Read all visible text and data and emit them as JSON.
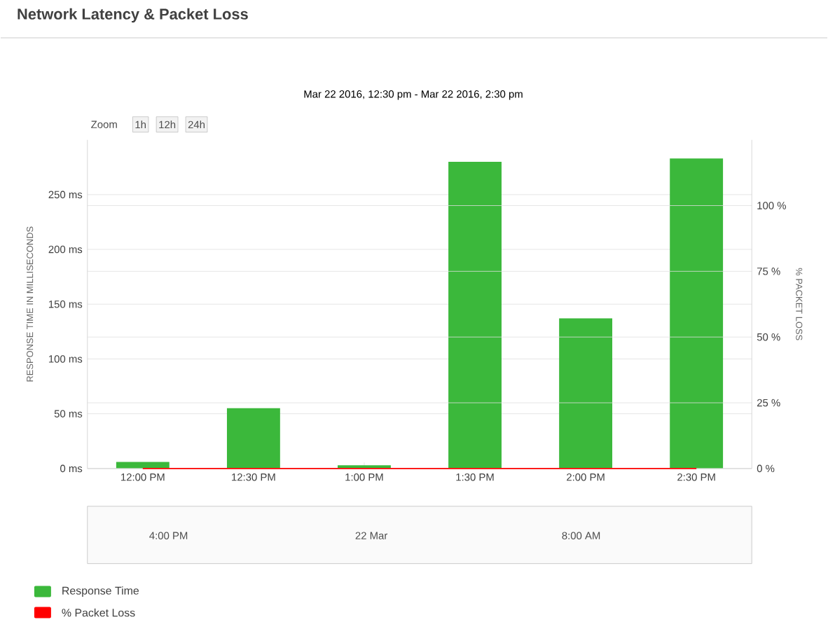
{
  "chart_data": {
    "type": "bar",
    "title": "Network Latency & Packet Loss",
    "subtitle": "Mar 22 2016, 12:30 pm - Mar 22 2016, 2:30 pm",
    "ylabel": "RESPONSE TIME IN MILLISECONDS",
    "y2label": "% PACKET LOSS",
    "categories": [
      "12:00 PM",
      "12:30 PM",
      "1:00 PM",
      "1:30 PM",
      "2:00 PM",
      "2:30 PM"
    ],
    "series": [
      {
        "name": "Response Time",
        "color": "#3bb83b",
        "values": [
          6,
          55,
          3,
          280,
          137,
          283
        ]
      },
      {
        "name": "% Packet Loss",
        "color": "#ff0000",
        "type": "line",
        "axis": "y2",
        "values": [
          0,
          0,
          0,
          0,
          0,
          0
        ]
      }
    ],
    "ylim": [
      0,
      300
    ],
    "yticks": [
      {
        "value": 0,
        "label": "0 ms"
      },
      {
        "value": 50,
        "label": "50 ms"
      },
      {
        "value": 100,
        "label": "100 ms"
      },
      {
        "value": 150,
        "label": "150 ms"
      },
      {
        "value": 200,
        "label": "200 ms"
      },
      {
        "value": 250,
        "label": "250 ms"
      }
    ],
    "y2lim": [
      0,
      125
    ],
    "y2ticks": [
      {
        "value": 0,
        "label": "0 %"
      },
      {
        "value": 25,
        "label": "25 %"
      },
      {
        "value": 50,
        "label": "50 %"
      },
      {
        "value": 75,
        "label": "75 %"
      },
      {
        "value": 100,
        "label": "100 %"
      }
    ],
    "grid": "y",
    "legend": "bottom left",
    "marker": "none",
    "annotations": [
      "Zoom",
      "1h",
      "12h",
      "24h",
      "4:00 PM",
      "22 Mar",
      "8:00 AM"
    ]
  }
}
